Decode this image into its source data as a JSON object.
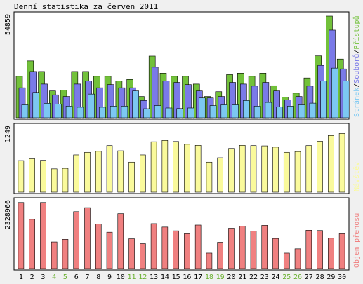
{
  "title": "Denní statistika za červen 2011",
  "colors": {
    "page_bg": "#f0f0f0",
    "panel_bg": "#ffffff",
    "hits": "#72c13a",
    "files": "#7a7ae8",
    "pages": "#7cc8f2",
    "visits": "#fafa9c",
    "kbytes": "#f08080",
    "weekday_tick": "#000000",
    "weekend_tick": "#6ab030"
  },
  "chart_data": [
    {
      "type": "bar",
      "panel": "top",
      "ymax_label": "54859",
      "ymax": 54859,
      "side_labels": [
        "Stránek",
        "Souborů",
        "Přístupů"
      ],
      "categories": [
        "1",
        "2",
        "3",
        "4",
        "5",
        "6",
        "7",
        "8",
        "9",
        "10",
        "11",
        "12",
        "13",
        "14",
        "15",
        "16",
        "17",
        "18",
        "19",
        "20",
        "21",
        "22",
        "23",
        "24",
        "25",
        "26",
        "27",
        "28",
        "29",
        "30"
      ],
      "weekend_days": [
        "4",
        "5",
        "11",
        "12",
        "18",
        "19",
        "25",
        "26"
      ],
      "series": [
        {
          "name": "Přístupů",
          "values": [
            22400,
            30700,
            25000,
            14500,
            15000,
            25000,
            25000,
            22400,
            22400,
            19900,
            20700,
            11500,
            33300,
            24100,
            22400,
            22400,
            18200,
            11500,
            14100,
            23300,
            24100,
            22400,
            24100,
            17300,
            11100,
            13300,
            21500,
            33400,
            54859,
            31700
          ]
        },
        {
          "name": "Souborů",
          "values": [
            16200,
            25000,
            18200,
            12400,
            11500,
            18200,
            19900,
            16200,
            17900,
            16200,
            16200,
            9300,
            27300,
            19900,
            19100,
            17900,
            14500,
            10700,
            11500,
            19100,
            18200,
            17100,
            19100,
            14500,
            9700,
            11500,
            17100,
            28300,
            47300,
            26400
          ]
        },
        {
          "name": "Stránek",
          "values": [
            7000,
            13700,
            7800,
            7400,
            6300,
            5700,
            12800,
            5700,
            6300,
            6300,
            14500,
            4900,
            6600,
            5300,
            5000,
            5300,
            10700,
            6600,
            7000,
            7000,
            9300,
            6300,
            8300,
            5800,
            6300,
            7000,
            7900,
            19900,
            26800,
            19900
          ]
        }
      ]
    },
    {
      "type": "bar",
      "panel": "middle",
      "ymax_label": "1249",
      "ymax": 1249,
      "side_labels": [
        "Návštěv"
      ],
      "categories": [
        "1",
        "2",
        "3",
        "4",
        "5",
        "6",
        "7",
        "8",
        "9",
        "10",
        "11",
        "12",
        "13",
        "14",
        "15",
        "16",
        "17",
        "18",
        "19",
        "20",
        "21",
        "22",
        "23",
        "24",
        "25",
        "26",
        "27",
        "28",
        "29",
        "30"
      ],
      "series": [
        {
          "name": "Návštěv",
          "values": [
            610,
            645,
            615,
            450,
            460,
            720,
            770,
            790,
            900,
            800,
            580,
            720,
            975,
            1000,
            980,
            925,
            905,
            580,
            665,
            845,
            905,
            900,
            895,
            870,
            770,
            785,
            900,
            985,
            1095,
            1135
          ]
        }
      ]
    },
    {
      "type": "bar",
      "panel": "bottom",
      "ymax_label": "2328966",
      "ymax": 2328966,
      "side_labels": [
        "Objem přenosu"
      ],
      "categories": [
        "1",
        "2",
        "3",
        "4",
        "5",
        "6",
        "7",
        "8",
        "9",
        "10",
        "11",
        "12",
        "13",
        "14",
        "15",
        "16",
        "17",
        "18",
        "19",
        "20",
        "21",
        "22",
        "23",
        "24",
        "25",
        "26",
        "27",
        "28",
        "29",
        "30"
      ],
      "series": [
        {
          "name": "Objem přenosu",
          "values": [
            2310000,
            1720000,
            2310000,
            930000,
            1020000,
            1990000,
            2130000,
            1560000,
            1270000,
            1920000,
            1040000,
            870000,
            1570000,
            1450000,
            1320000,
            1240000,
            1520000,
            540000,
            920000,
            1410000,
            1480000,
            1310000,
            1510000,
            1050000,
            540000,
            690000,
            1340000,
            1330000,
            1060000,
            1240000
          ]
        }
      ]
    }
  ]
}
